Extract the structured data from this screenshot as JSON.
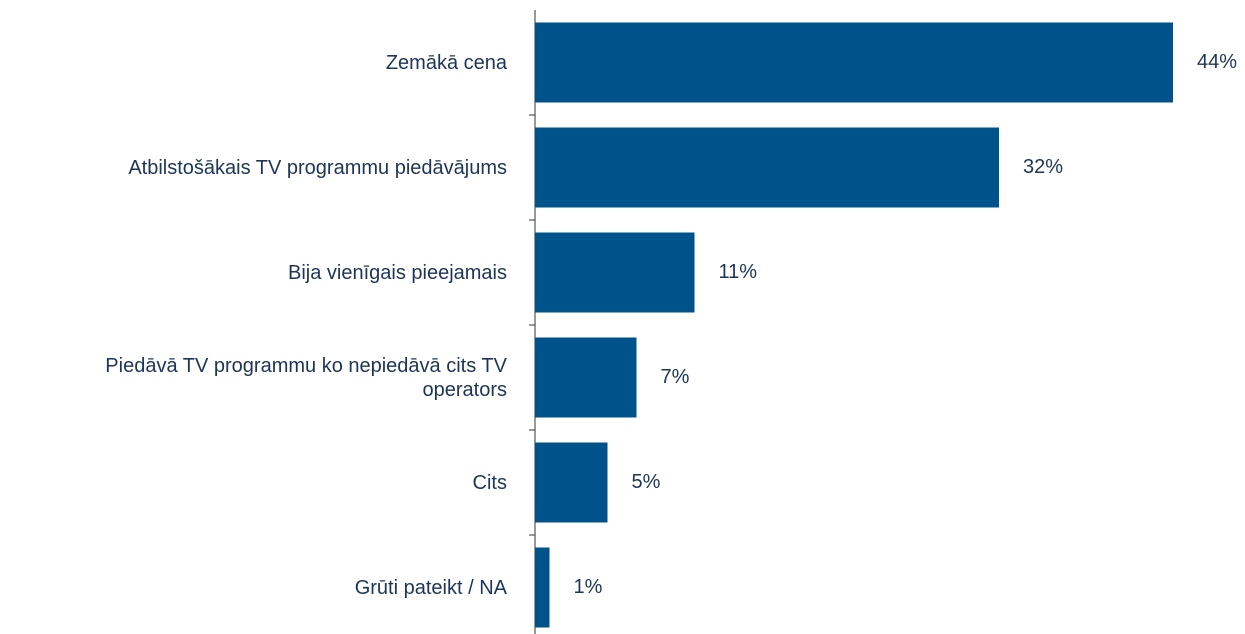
{
  "chart_data": {
    "type": "bar",
    "orientation": "horizontal",
    "categories": [
      "Zemākā cena",
      "Atbilstošākais TV programmu piedāvājums",
      "Bija vienīgais pieejamais",
      "Piedāvā TV programmu ko nepiedāvā cits TV operators",
      "Cits",
      "Grūti pateikt / NA"
    ],
    "values": [
      44,
      32,
      11,
      7,
      5,
      1
    ],
    "value_labels": [
      "44%",
      "32%",
      "11%",
      "7%",
      "5%",
      "1%"
    ],
    "color": "#00538a"
  }
}
